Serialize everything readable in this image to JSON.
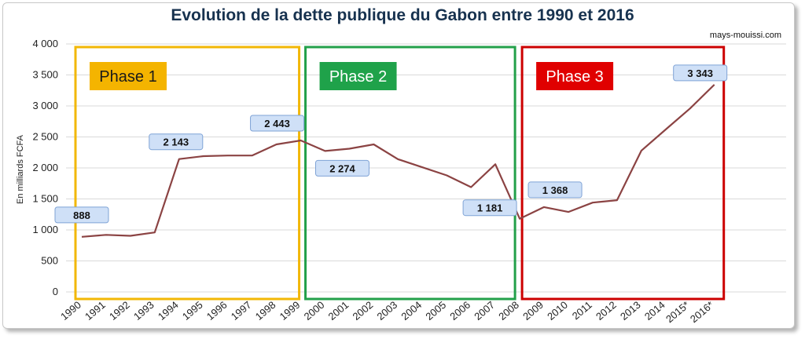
{
  "title": "Evolution de la dette publique du Gabon entre 1990 et 2016",
  "source": "mays-mouissi.com",
  "colors": {
    "line": "#8b4343",
    "grid": "#d9d9d9",
    "label_fill": "#cfe0f7",
    "label_border": "#7fa3d6",
    "title": "#17324f"
  },
  "chart_data": {
    "type": "line",
    "title": "Evolution de la dette publique du Gabon entre 1990 et 2016",
    "ylabel": "En milliards FCFA",
    "xlabel": "",
    "ylim": [
      0,
      4000
    ],
    "yticks": [
      0,
      500,
      1000,
      1500,
      2000,
      2500,
      3000,
      3500,
      4000
    ],
    "ytick_labels": [
      "0",
      "500",
      "1 000",
      "1 500",
      "2 000",
      "2 500",
      "3 000",
      "3 500",
      "4 000"
    ],
    "grid": "horizontal",
    "x": [
      "1990",
      "1991",
      "1992",
      "1993",
      "1994",
      "1995",
      "1996",
      "1997",
      "1998",
      "1999",
      "2000",
      "2001",
      "2002",
      "2003",
      "2004",
      "2005",
      "2006",
      "2007",
      "2008",
      "2009",
      "2010",
      "2011",
      "2012",
      "2013",
      "2014",
      "2015*",
      "2016*"
    ],
    "series": [
      {
        "values": [
          888,
          920,
          905,
          960,
          2143,
          2190,
          2200,
          2200,
          2380,
          2443,
          2274,
          2310,
          2380,
          2140,
          2010,
          1880,
          1690,
          2060,
          1181,
          1368,
          1290,
          1440,
          1480,
          2280,
          2620,
          2960,
          3343
        ]
      }
    ],
    "annotations": [
      {
        "index": 0,
        "text": "888"
      },
      {
        "index": 4,
        "text": "2 143"
      },
      {
        "index": 9,
        "text": "2 443"
      },
      {
        "index": 10,
        "text": "2 274"
      },
      {
        "index": 18,
        "text": "1 181"
      },
      {
        "index": 19,
        "text": "1 368"
      },
      {
        "index": 26,
        "text": "3 343"
      }
    ],
    "phases": [
      {
        "label": "Phase 1",
        "from": "1990",
        "to": "1999",
        "color": "#f2b705",
        "label_fill": "#f4b400",
        "text_color": "#1a1a1a"
      },
      {
        "label": "Phase 2",
        "from": "1999",
        "to": "2008",
        "color": "#23a04a",
        "label_fill": "#1fa24a",
        "text_color": "#ffffff"
      },
      {
        "label": "Phase 3",
        "from": "2008",
        "to": "2016*",
        "color": "#cc0000",
        "label_fill": "#e00000",
        "text_color": "#ffffff"
      }
    ]
  }
}
